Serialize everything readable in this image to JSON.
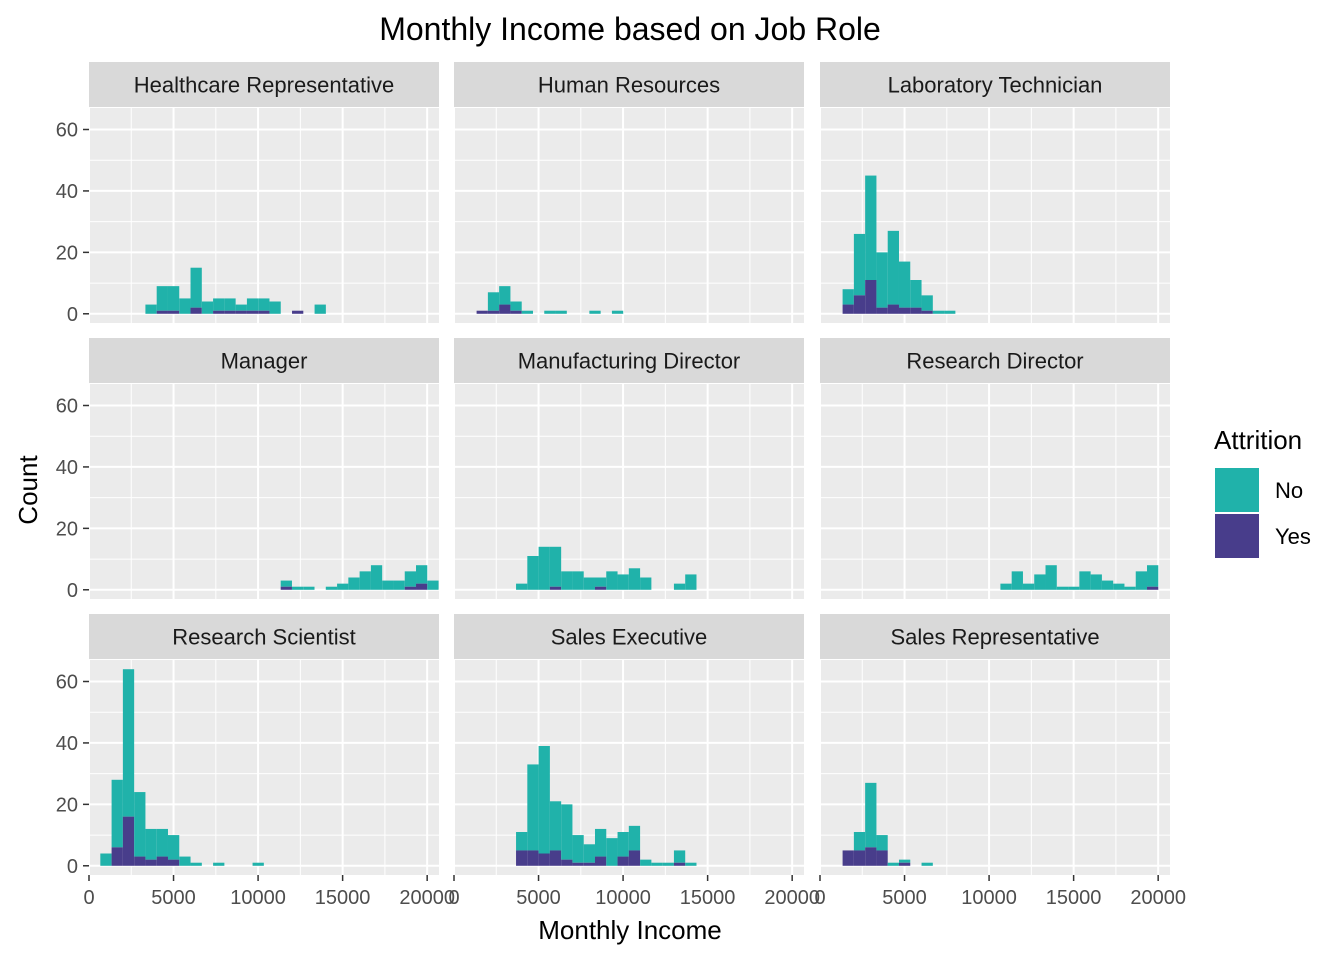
{
  "chart_data": {
    "type": "bar",
    "subtype": "faceted-stacked-histogram",
    "title": "Monthly Income based on Job Role",
    "xlabel": "Monthly Income",
    "ylabel": "Count",
    "xlim": [
      0,
      20700
    ],
    "ylim": [
      -3,
      67
    ],
    "bin_width": 667,
    "x_ticks": [
      0,
      5000,
      10000,
      15000,
      20000
    ],
    "x_tick_labels": [
      "0",
      "5000",
      "10000",
      "15000",
      "20000"
    ],
    "y_ticks": [
      0,
      20,
      40,
      60
    ],
    "y_tick_labels": [
      "0",
      "20",
      "40",
      "60"
    ],
    "grid": true,
    "legend": {
      "title": "Attrition",
      "placement": "right",
      "entries": [
        {
          "label": "No",
          "color": "#20b2aa"
        },
        {
          "label": "Yes",
          "color": "#483d8b"
        }
      ]
    },
    "colors": {
      "No": "#20b2aa",
      "Yes": "#483d8b"
    },
    "panels": [
      {
        "name": "Healthcare Representative",
        "bins": [
          {
            "x": 3670,
            "no": 3,
            "yes": 0
          },
          {
            "x": 4337,
            "no": 8,
            "yes": 1
          },
          {
            "x": 5004,
            "no": 8,
            "yes": 1
          },
          {
            "x": 5671,
            "no": 5,
            "yes": 0
          },
          {
            "x": 6338,
            "no": 13,
            "yes": 2
          },
          {
            "x": 7005,
            "no": 4,
            "yes": 0
          },
          {
            "x": 7672,
            "no": 4,
            "yes": 1
          },
          {
            "x": 8339,
            "no": 4,
            "yes": 1
          },
          {
            "x": 9006,
            "no": 2,
            "yes": 1
          },
          {
            "x": 9673,
            "no": 4,
            "yes": 1
          },
          {
            "x": 10340,
            "no": 4,
            "yes": 1
          },
          {
            "x": 11007,
            "no": 4,
            "yes": 0
          },
          {
            "x": 12341,
            "no": 0,
            "yes": 1
          },
          {
            "x": 13675,
            "no": 3,
            "yes": 0
          }
        ]
      },
      {
        "name": "Human Resources",
        "bins": [
          {
            "x": 1670,
            "no": 0,
            "yes": 1
          },
          {
            "x": 2337,
            "no": 6,
            "yes": 1
          },
          {
            "x": 3004,
            "no": 6,
            "yes": 3
          },
          {
            "x": 3671,
            "no": 3,
            "yes": 1
          },
          {
            "x": 4338,
            "no": 1,
            "yes": 0
          },
          {
            "x": 5672,
            "no": 1,
            "yes": 0
          },
          {
            "x": 6339,
            "no": 1,
            "yes": 0
          },
          {
            "x": 8340,
            "no": 1,
            "yes": 0
          },
          {
            "x": 9674,
            "no": 1,
            "yes": 0
          }
        ]
      },
      {
        "name": "Laboratory Technician",
        "bins": [
          {
            "x": 1670,
            "no": 5,
            "yes": 3
          },
          {
            "x": 2337,
            "no": 20,
            "yes": 6
          },
          {
            "x": 3004,
            "no": 34,
            "yes": 11
          },
          {
            "x": 3671,
            "no": 18,
            "yes": 2
          },
          {
            "x": 4338,
            "no": 24,
            "yes": 3
          },
          {
            "x": 5005,
            "no": 15,
            "yes": 2
          },
          {
            "x": 5672,
            "no": 9,
            "yes": 2
          },
          {
            "x": 6339,
            "no": 5,
            "yes": 1
          },
          {
            "x": 7006,
            "no": 1,
            "yes": 0
          },
          {
            "x": 7673,
            "no": 1,
            "yes": 0
          }
        ]
      },
      {
        "name": "Manager",
        "bins": [
          {
            "x": 11670,
            "no": 2,
            "yes": 1
          },
          {
            "x": 12337,
            "no": 1,
            "yes": 0
          },
          {
            "x": 13004,
            "no": 1,
            "yes": 0
          },
          {
            "x": 14338,
            "no": 1,
            "yes": 0
          },
          {
            "x": 15005,
            "no": 2,
            "yes": 0
          },
          {
            "x": 15672,
            "no": 4,
            "yes": 0
          },
          {
            "x": 16339,
            "no": 6,
            "yes": 0
          },
          {
            "x": 17006,
            "no": 8,
            "yes": 0
          },
          {
            "x": 17673,
            "no": 3,
            "yes": 0
          },
          {
            "x": 18340,
            "no": 3,
            "yes": 0
          },
          {
            "x": 19007,
            "no": 5,
            "yes": 1
          },
          {
            "x": 19674,
            "no": 6,
            "yes": 2
          },
          {
            "x": 20341,
            "no": 3,
            "yes": 0
          }
        ]
      },
      {
        "name": "Manufacturing Director",
        "bins": [
          {
            "x": 4003,
            "no": 2,
            "yes": 0
          },
          {
            "x": 4670,
            "no": 11,
            "yes": 0
          },
          {
            "x": 5337,
            "no": 14,
            "yes": 0
          },
          {
            "x": 6004,
            "no": 13,
            "yes": 1
          },
          {
            "x": 6671,
            "no": 6,
            "yes": 0
          },
          {
            "x": 7338,
            "no": 6,
            "yes": 0
          },
          {
            "x": 8005,
            "no": 4,
            "yes": 0
          },
          {
            "x": 8672,
            "no": 3,
            "yes": 1
          },
          {
            "x": 9339,
            "no": 6,
            "yes": 0
          },
          {
            "x": 10006,
            "no": 5,
            "yes": 0
          },
          {
            "x": 10673,
            "no": 7,
            "yes": 0
          },
          {
            "x": 11340,
            "no": 4,
            "yes": 0
          },
          {
            "x": 13341,
            "no": 2,
            "yes": 0
          },
          {
            "x": 14008,
            "no": 5,
            "yes": 0
          }
        ]
      },
      {
        "name": "Research Director",
        "bins": [
          {
            "x": 11003,
            "no": 2,
            "yes": 0
          },
          {
            "x": 11670,
            "no": 6,
            "yes": 0
          },
          {
            "x": 12337,
            "no": 2,
            "yes": 0
          },
          {
            "x": 13004,
            "no": 5,
            "yes": 0
          },
          {
            "x": 13671,
            "no": 8,
            "yes": 0
          },
          {
            "x": 14338,
            "no": 1,
            "yes": 0
          },
          {
            "x": 15005,
            "no": 1,
            "yes": 0
          },
          {
            "x": 15672,
            "no": 6,
            "yes": 0
          },
          {
            "x": 16339,
            "no": 5,
            "yes": 0
          },
          {
            "x": 17006,
            "no": 3,
            "yes": 0
          },
          {
            "x": 17673,
            "no": 2,
            "yes": 0
          },
          {
            "x": 18340,
            "no": 1,
            "yes": 0
          },
          {
            "x": 19007,
            "no": 6,
            "yes": 0
          },
          {
            "x": 19674,
            "no": 7,
            "yes": 1
          }
        ]
      },
      {
        "name": "Research Scientist",
        "bins": [
          {
            "x": 1003,
            "no": 4,
            "yes": 0
          },
          {
            "x": 1670,
            "no": 22,
            "yes": 6
          },
          {
            "x": 2337,
            "no": 48,
            "yes": 16
          },
          {
            "x": 3004,
            "no": 21,
            "yes": 3
          },
          {
            "x": 3671,
            "no": 10,
            "yes": 2
          },
          {
            "x": 4338,
            "no": 9,
            "yes": 3
          },
          {
            "x": 5005,
            "no": 8,
            "yes": 2
          },
          {
            "x": 5672,
            "no": 3,
            "yes": 0
          },
          {
            "x": 6339,
            "no": 1,
            "yes": 0
          },
          {
            "x": 7673,
            "no": 1,
            "yes": 0
          },
          {
            "x": 10007,
            "no": 1,
            "yes": 0
          }
        ]
      },
      {
        "name": "Sales Executive",
        "bins": [
          {
            "x": 4003,
            "no": 6,
            "yes": 5
          },
          {
            "x": 4670,
            "no": 28,
            "yes": 5
          },
          {
            "x": 5337,
            "no": 35,
            "yes": 4
          },
          {
            "x": 6004,
            "no": 16,
            "yes": 5
          },
          {
            "x": 6671,
            "no": 18,
            "yes": 2
          },
          {
            "x": 7338,
            "no": 9,
            "yes": 1
          },
          {
            "x": 8005,
            "no": 6,
            "yes": 1
          },
          {
            "x": 8672,
            "no": 9,
            "yes": 3
          },
          {
            "x": 9339,
            "no": 9,
            "yes": 0
          },
          {
            "x": 10006,
            "no": 8,
            "yes": 3
          },
          {
            "x": 10673,
            "no": 8,
            "yes": 5
          },
          {
            "x": 11340,
            "no": 2,
            "yes": 0
          },
          {
            "x": 12007,
            "no": 1,
            "yes": 0
          },
          {
            "x": 12674,
            "no": 1,
            "yes": 0
          },
          {
            "x": 13341,
            "no": 4,
            "yes": 1
          },
          {
            "x": 14008,
            "no": 1,
            "yes": 0
          }
        ]
      },
      {
        "name": "Sales Representative",
        "bins": [
          {
            "x": 1670,
            "no": 0,
            "yes": 5
          },
          {
            "x": 2337,
            "no": 6,
            "yes": 5
          },
          {
            "x": 3004,
            "no": 21,
            "yes": 6
          },
          {
            "x": 3671,
            "no": 5,
            "yes": 5
          },
          {
            "x": 4338,
            "no": 1,
            "yes": 0
          },
          {
            "x": 5005,
            "no": 1,
            "yes": 1
          },
          {
            "x": 6339,
            "no": 1,
            "yes": 0
          }
        ]
      }
    ]
  }
}
